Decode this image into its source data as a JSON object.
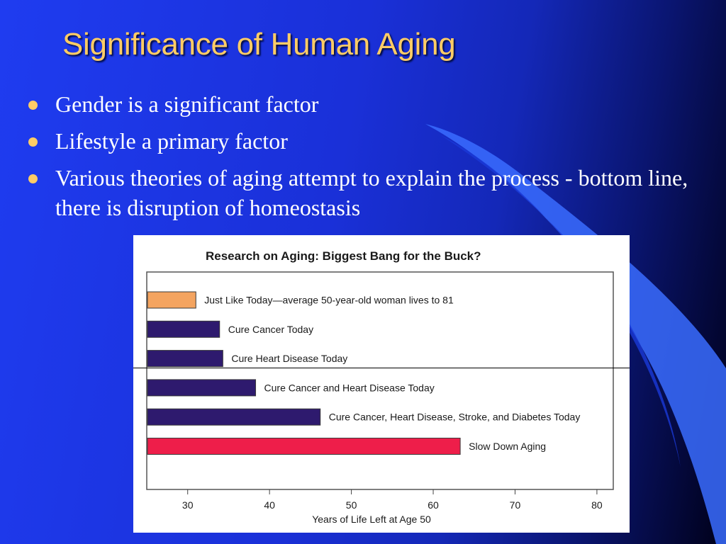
{
  "slide": {
    "title": "Significance of Human Aging",
    "bullets": [
      "Gender is a significant factor",
      "Lifestyle a primary factor",
      "Various theories of aging attempt to explain the process - bottom line, there is disruption of homeostasis"
    ],
    "colors": {
      "title": "#ffcc66",
      "bullet_dot": "#ffcc66",
      "text": "#ffffff",
      "background": "#1f3cf0"
    }
  },
  "chart_data": {
    "type": "bar",
    "orientation": "horizontal",
    "title": "Research on Aging: Biggest Bang for the Buck?",
    "xlabel": "Years of Life Left at Age 50",
    "xlim": [
      25,
      82
    ],
    "ticks": [
      30,
      40,
      50,
      60,
      70,
      80
    ],
    "grid": false,
    "categories": [
      "Just Like Today—average 50-year-old woman lives to 81",
      "Cure Cancer Today",
      "Cure Heart Disease Today",
      "Cure Cancer and Heart Disease Today",
      "Cure Cancer, Heart Disease, Stroke, and Diabetes Today",
      "Slow Down Aging"
    ],
    "values": [
      31,
      33.9,
      34.3,
      38.3,
      46.2,
      63.3
    ],
    "colors": [
      "#f4a460",
      "#2e1a6e",
      "#2e1a6e",
      "#2e1a6e",
      "#2e1a6e",
      "#ee1e4a"
    ]
  }
}
